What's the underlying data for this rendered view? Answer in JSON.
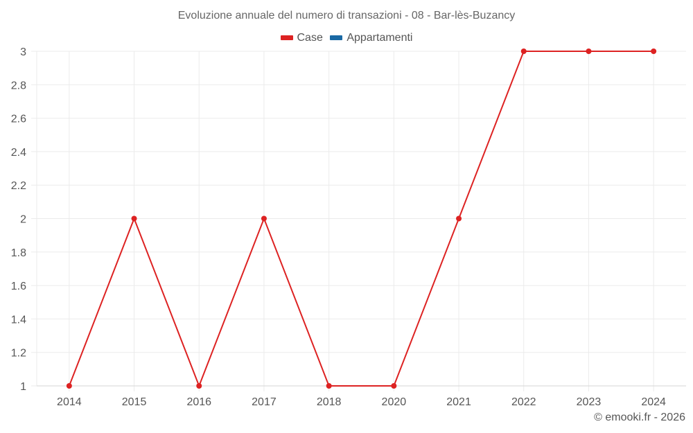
{
  "chart_data": {
    "type": "line",
    "title": "Evoluzione annuale del numero di transazioni - 08 - Bar-lès-Buzancy",
    "xlabel": "",
    "ylabel": "",
    "categories": [
      "2014",
      "2015",
      "2016",
      "2017",
      "2018",
      "2020",
      "2021",
      "2022",
      "2023",
      "2024"
    ],
    "series": [
      {
        "name": "Case",
        "color": "#dd2222",
        "values": [
          1,
          2,
          1,
          2,
          1,
          1,
          2,
          3,
          3,
          3
        ]
      },
      {
        "name": "Appartamenti",
        "color": "#1a69a4",
        "values": []
      }
    ],
    "ylim": [
      1,
      3
    ],
    "yticks": [
      "1",
      "1.2",
      "1.4",
      "1.6",
      "1.8",
      "2",
      "2.2",
      "2.4",
      "2.6",
      "2.8",
      "3"
    ],
    "grid": true,
    "legend_position": "top"
  },
  "legend": [
    {
      "label": "Case",
      "color": "#dd2222"
    },
    {
      "label": "Appartamenti",
      "color": "#1a69a4"
    }
  ],
  "footer": "© emooki.fr - 2026"
}
